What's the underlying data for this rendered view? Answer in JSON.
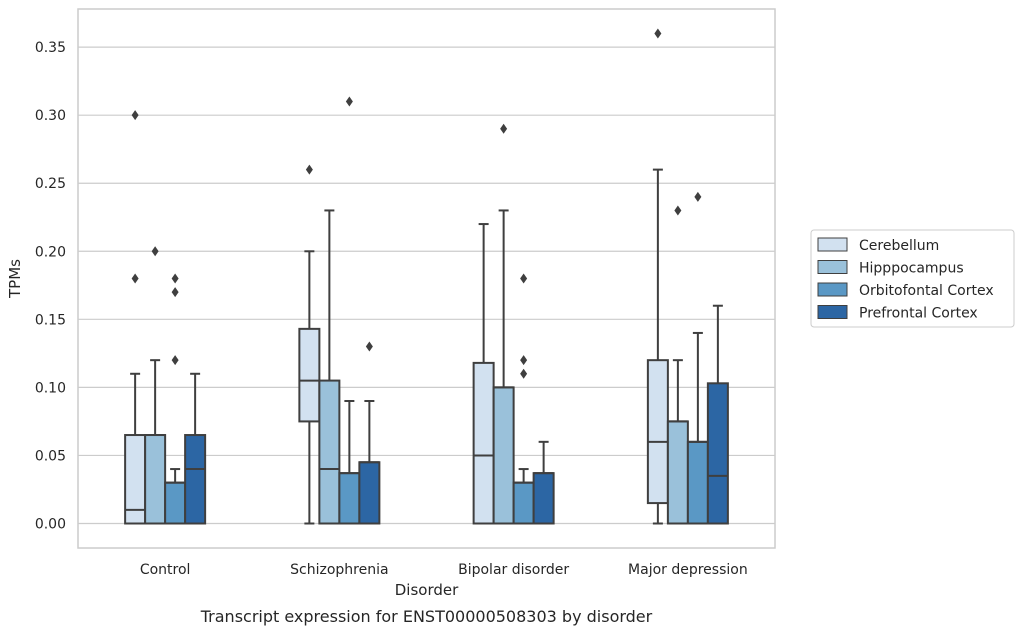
{
  "chart_data": {
    "type": "box",
    "title": "",
    "caption": "Transcript expression for ENST00000508303 by disorder",
    "xlabel": "Disorder",
    "ylabel": "TPMs",
    "ylim": [
      -0.018,
      0.378
    ],
    "yticks": [
      0.0,
      0.05,
      0.1,
      0.15,
      0.2,
      0.25,
      0.3,
      0.35
    ],
    "ytick_labels": [
      "0.00",
      "0.05",
      "0.10",
      "0.15",
      "0.20",
      "0.25",
      "0.30",
      "0.35"
    ],
    "grid": "horizontal",
    "legend_position": "right",
    "categories": [
      "Control",
      "Schizophrenia",
      "Bipolar disorder",
      "Major depression"
    ],
    "series": [
      {
        "name": "Cerebellum",
        "color": "#d2e1f0",
        "boxes": [
          {
            "whislo": 0.0,
            "q1": 0.0,
            "med": 0.01,
            "q3": 0.065,
            "whishi": 0.11,
            "fliers": [
              0.18,
              0.3
            ]
          },
          {
            "whislo": 0.0,
            "q1": 0.075,
            "med": 0.105,
            "q3": 0.143,
            "whishi": 0.2,
            "fliers": [
              0.26
            ]
          },
          {
            "whislo": 0.0,
            "q1": 0.0,
            "med": 0.05,
            "q3": 0.118,
            "whishi": 0.22,
            "fliers": []
          },
          {
            "whislo": 0.0,
            "q1": 0.015,
            "med": 0.06,
            "q3": 0.12,
            "whishi": 0.26,
            "fliers": [
              0.36
            ]
          }
        ]
      },
      {
        "name": "Hipppocampus",
        "color": "#9ac1da",
        "boxes": [
          {
            "whislo": 0.0,
            "q1": 0.0,
            "med": 0.065,
            "q3": 0.065,
            "whishi": 0.12,
            "fliers": [
              0.2
            ]
          },
          {
            "whislo": 0.0,
            "q1": 0.0,
            "med": 0.04,
            "q3": 0.105,
            "whishi": 0.23,
            "fliers": []
          },
          {
            "whislo": 0.0,
            "q1": 0.0,
            "med": 0.1,
            "q3": 0.1,
            "whishi": 0.23,
            "fliers": [
              0.29
            ]
          },
          {
            "whislo": 0.0,
            "q1": 0.0,
            "med": 0.075,
            "q3": 0.075,
            "whishi": 0.12,
            "fliers": [
              0.23
            ]
          }
        ]
      },
      {
        "name": "Orbitofontal Cortex",
        "color": "#5a98c5",
        "boxes": [
          {
            "whislo": 0.0,
            "q1": 0.0,
            "med": 0.03,
            "q3": 0.03,
            "whishi": 0.04,
            "fliers": [
              0.12,
              0.17,
              0.18
            ]
          },
          {
            "whislo": 0.0,
            "q1": 0.0,
            "med": 0.037,
            "q3": 0.037,
            "whishi": 0.09,
            "fliers": [
              0.31
            ]
          },
          {
            "whislo": 0.0,
            "q1": 0.0,
            "med": 0.03,
            "q3": 0.03,
            "whishi": 0.04,
            "fliers": [
              0.11,
              0.12,
              0.18
            ]
          },
          {
            "whislo": 0.0,
            "q1": 0.0,
            "med": 0.06,
            "q3": 0.06,
            "whishi": 0.14,
            "fliers": [
              0.24
            ]
          }
        ]
      },
      {
        "name": "Prefrontal Cortex",
        "color": "#2c66a4",
        "boxes": [
          {
            "whislo": 0.0,
            "q1": 0.0,
            "med": 0.04,
            "q3": 0.065,
            "whishi": 0.11,
            "fliers": []
          },
          {
            "whislo": 0.0,
            "q1": 0.0,
            "med": 0.045,
            "q3": 0.045,
            "whishi": 0.09,
            "fliers": [
              0.13
            ]
          },
          {
            "whislo": 0.0,
            "q1": 0.0,
            "med": 0.037,
            "q3": 0.037,
            "whishi": 0.06,
            "fliers": []
          },
          {
            "whislo": 0.0,
            "q1": 0.0,
            "med": 0.035,
            "q3": 0.103,
            "whishi": 0.16,
            "fliers": []
          }
        ]
      }
    ]
  },
  "colors": {
    "edge": "#3f3f3f",
    "grid": "#cccccc",
    "frame": "#cccccc"
  }
}
